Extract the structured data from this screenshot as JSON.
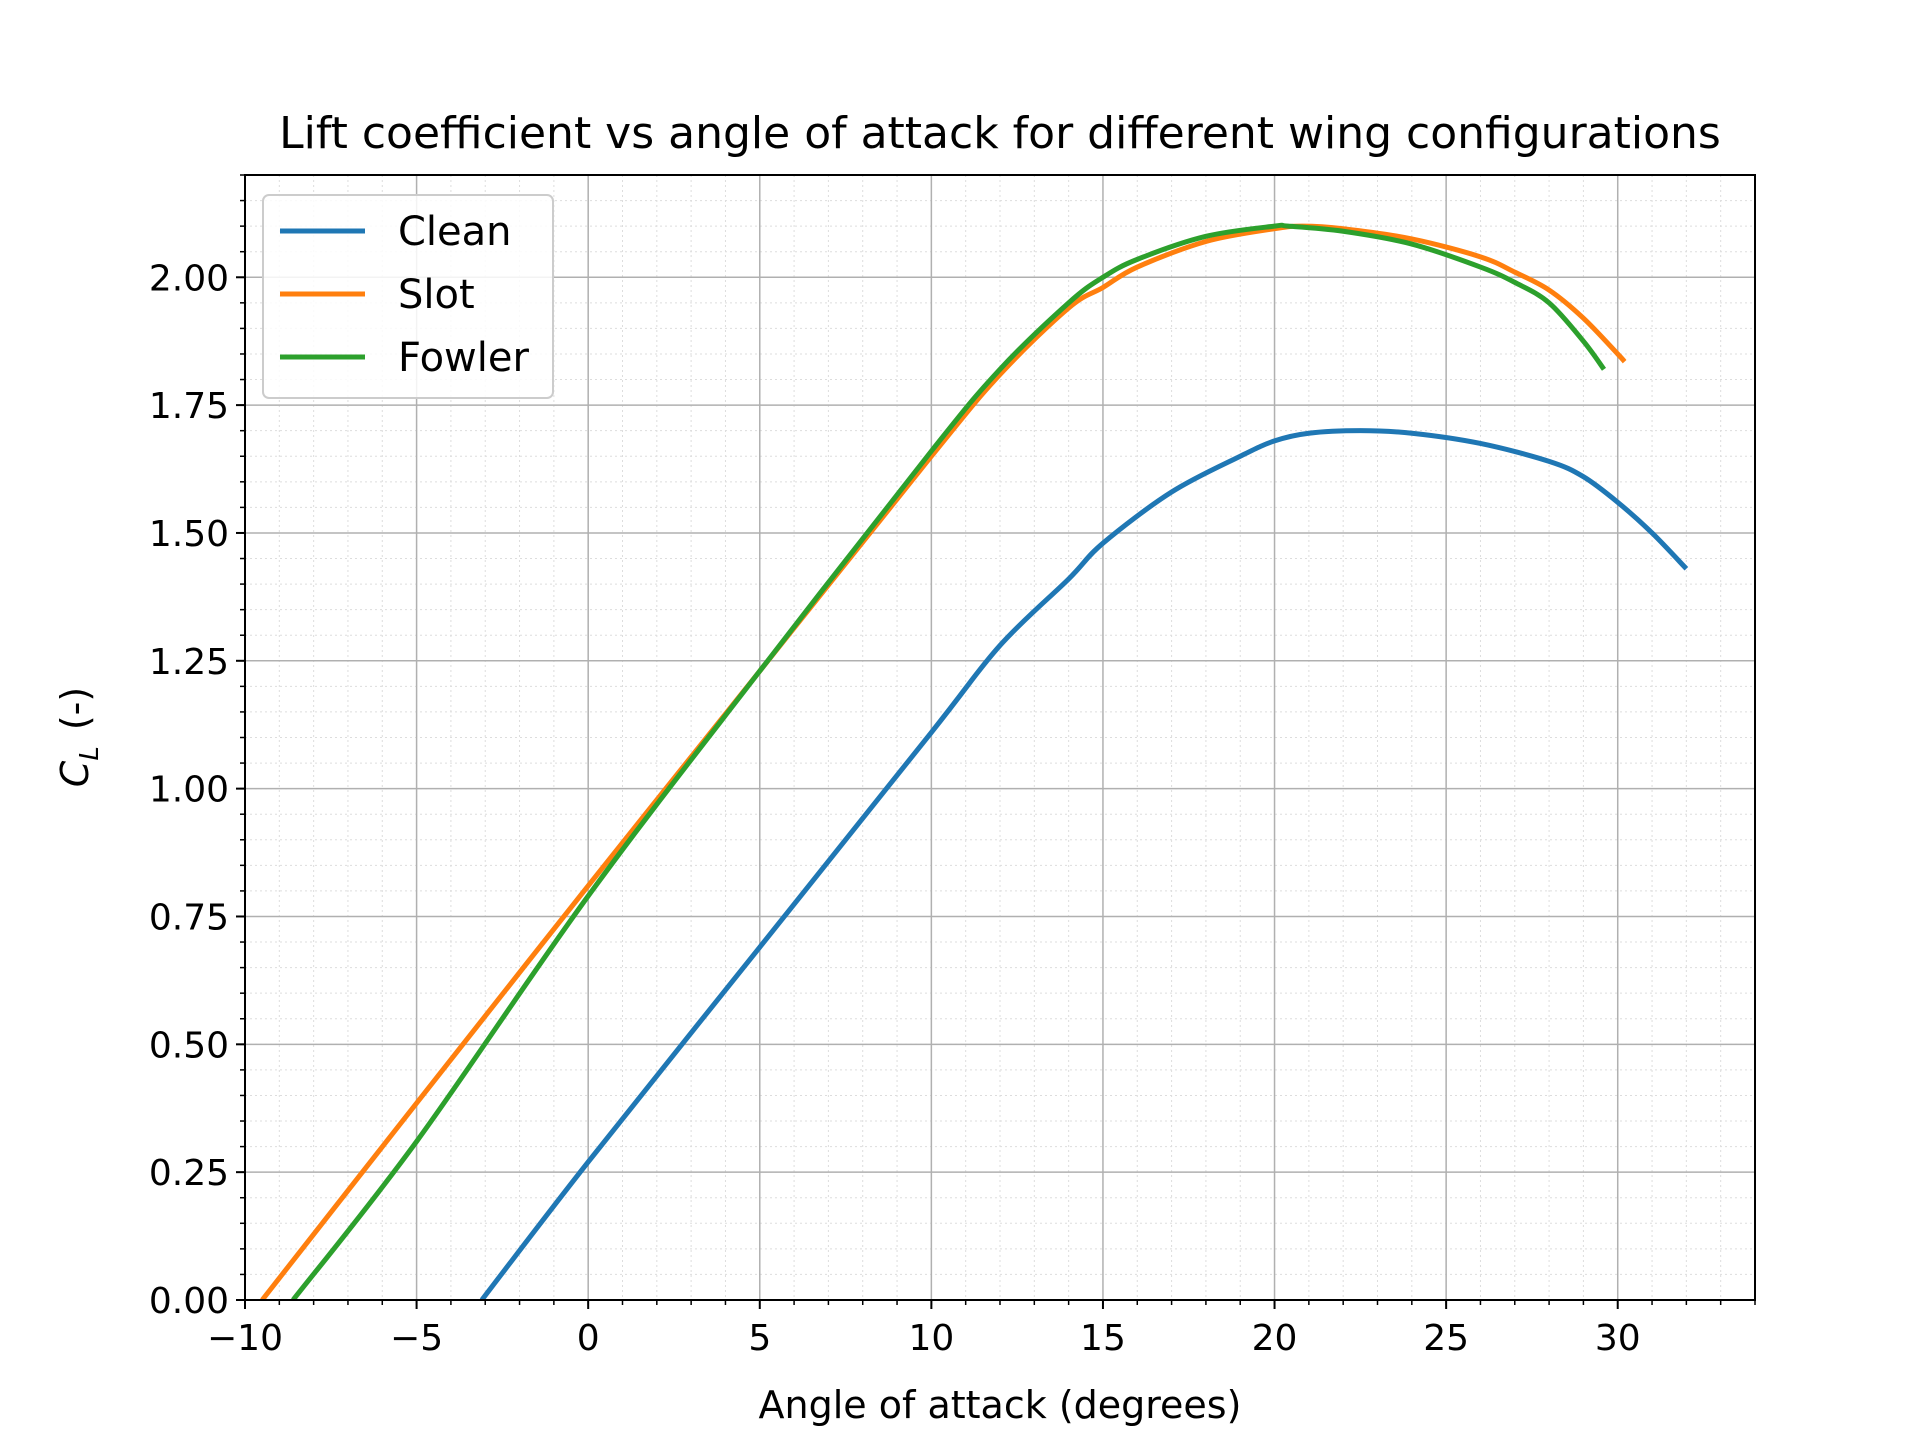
{
  "chart_data": {
    "type": "line",
    "title": "Lift coefficient vs angle of attack for different wing configurations",
    "xlabel": "Angle of attack (degrees)",
    "ylabel_main": "C",
    "ylabel_sub": "L",
    "ylabel_suffix": "(-)",
    "xlim": [
      -10,
      34
    ],
    "ylim": [
      0,
      2.2
    ],
    "xticks": [
      -10,
      -5,
      0,
      5,
      10,
      15,
      20,
      25,
      30
    ],
    "xtick_labels": [
      "−10",
      "−5",
      "0",
      "5",
      "10",
      "15",
      "20",
      "25",
      "30"
    ],
    "yticks": [
      0,
      0.25,
      0.5,
      0.75,
      1.0,
      1.25,
      1.5,
      1.75,
      2.0
    ],
    "ytick_labels": [
      "0.00",
      "0.25",
      "0.50",
      "0.75",
      "1.00",
      "1.25",
      "1.50",
      "1.75",
      "2.00"
    ],
    "x_minor_step": 1,
    "y_minor_step": 0.05,
    "grid": true,
    "legend_position": "upper-left",
    "series": [
      {
        "name": "Clean",
        "color": "#1f77b4",
        "x": [
          -3.1,
          0,
          5,
          10,
          12,
          14,
          15,
          17,
          19,
          20,
          21,
          22.5,
          24,
          26,
          28,
          29,
          30,
          31,
          32
        ],
        "y": [
          0,
          0.27,
          0.69,
          1.11,
          1.28,
          1.41,
          1.48,
          1.58,
          1.65,
          1.68,
          1.695,
          1.7,
          1.695,
          1.675,
          1.64,
          1.61,
          1.56,
          1.5,
          1.43
        ]
      },
      {
        "name": "Slot",
        "color": "#ff7f0e",
        "x": [
          -9.5,
          -5,
          0,
          5,
          10,
          12,
          14,
          15,
          16,
          18,
          20,
          20.8,
          22,
          24,
          26,
          27,
          28,
          29,
          30,
          30.2
        ],
        "y": [
          0,
          0.385,
          0.81,
          1.23,
          1.65,
          1.81,
          1.94,
          1.98,
          2.02,
          2.07,
          2.095,
          2.1,
          2.095,
          2.075,
          2.04,
          2.01,
          1.975,
          1.92,
          1.85,
          1.835
        ]
      },
      {
        "name": "Fowler",
        "color": "#2ca02c",
        "x": [
          -8.6,
          -5,
          0,
          5,
          10,
          12,
          14,
          15,
          16,
          18,
          20,
          20.4,
          22,
          24,
          26,
          27,
          28,
          29,
          29.6
        ],
        "y": [
          0,
          0.31,
          0.79,
          1.23,
          1.66,
          1.82,
          1.95,
          2.0,
          2.035,
          2.08,
          2.1,
          2.1,
          2.09,
          2.065,
          2.02,
          1.99,
          1.95,
          1.875,
          1.82
        ]
      }
    ]
  }
}
